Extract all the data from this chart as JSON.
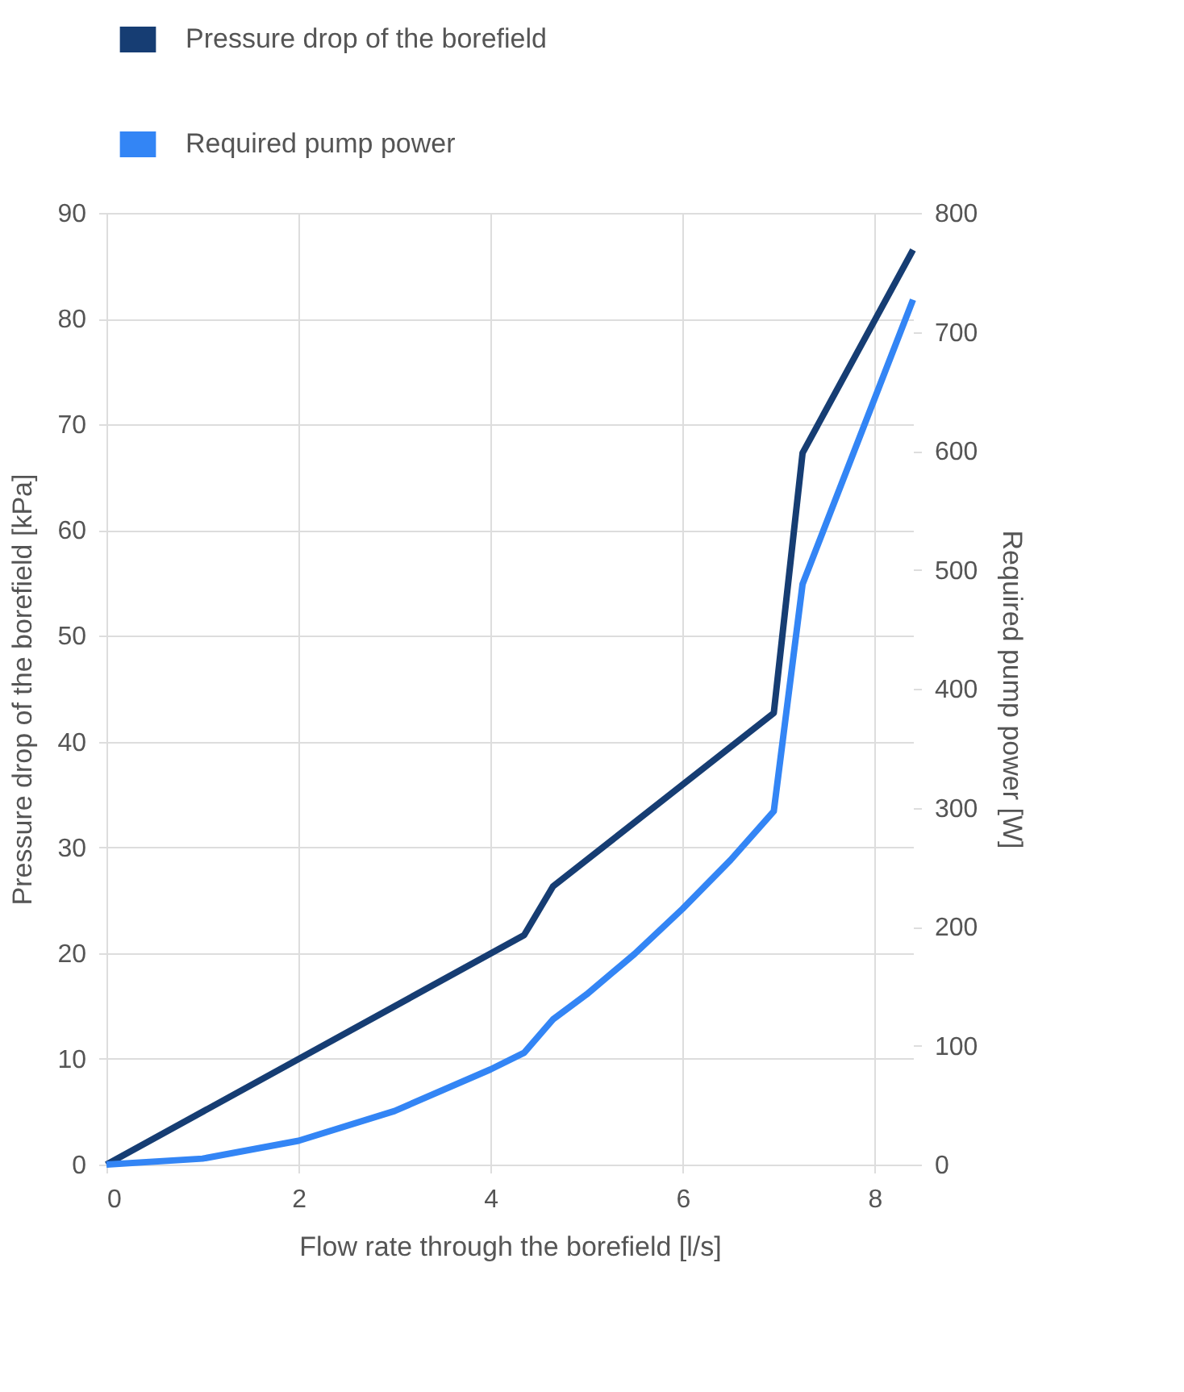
{
  "chart_data": {
    "type": "line",
    "xlabel": "Flow rate through the borefield [l/s]",
    "ylabel": "Pressure drop of the borefield [kPa]",
    "y2label": "Required pump power [W]",
    "xlim": [
      0,
      8.4
    ],
    "xticks": [
      0,
      2,
      4,
      6,
      8
    ],
    "ylim": [
      0,
      90
    ],
    "yticks": [
      0,
      10,
      20,
      30,
      40,
      50,
      60,
      70,
      80,
      90
    ],
    "y2lim": [
      0,
      800
    ],
    "y2ticks": [
      0,
      100,
      200,
      300,
      400,
      500,
      600,
      700,
      800
    ],
    "grid": true,
    "legend": "top",
    "marker": "none",
    "line_style": "solid",
    "series": [
      {
        "name": "Pressure drop of the borefield",
        "color": "#163d73",
        "x": [
          0,
          4.35,
          4.65,
          6.95,
          7.25,
          8.4
        ],
        "values": [
          0,
          21.7,
          26.3,
          42.7,
          67.3,
          86.5
        ]
      },
      {
        "name": "Required pump power",
        "color": "#3385f5",
        "axis": "y2",
        "x": [
          0,
          1,
          2,
          3,
          4,
          4.35,
          4.65,
          5,
          5.5,
          6,
          6.5,
          6.95,
          7.25,
          8.4
        ],
        "values": [
          0,
          5,
          20,
          45,
          80,
          94,
          122,
          143,
          177,
          215,
          256,
          297,
          488,
          727
        ]
      }
    ]
  }
}
